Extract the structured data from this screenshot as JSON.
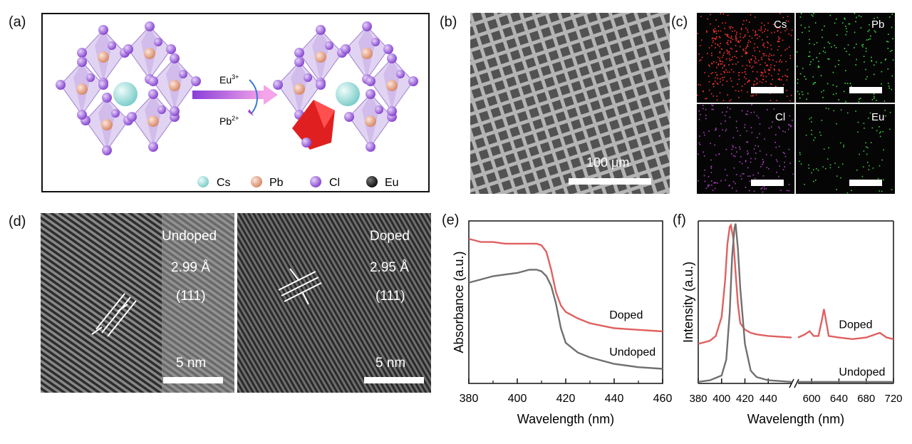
{
  "panels": {
    "a": {
      "label": "(a)",
      "ion_in": "Eu",
      "ion_in_sup": "3+",
      "ion_out": "Pb",
      "ion_out_sup": "2+",
      "legend": [
        "Cs",
        "Pb",
        "Cl",
        "Eu"
      ],
      "legend_colors": {
        "Cs": "#bfe8e6",
        "Pb": "#f0b898",
        "Cl": "#a872e0",
        "Eu": "#222222"
      }
    },
    "b": {
      "label": "(b)",
      "scale": "100 μm"
    },
    "c": {
      "label": "(c)",
      "maps": [
        {
          "element": "Cs",
          "color": "#ff3030"
        },
        {
          "element": "Pb",
          "color": "#3fdc3f"
        },
        {
          "element": "Cl",
          "color": "#b040c8"
        },
        {
          "element": "Eu",
          "color": "#40c840"
        }
      ]
    },
    "d": {
      "label": "(d)",
      "undoped": {
        "title": "Undoped",
        "spacing": "2.99 Å",
        "plane": "(111)",
        "scale": "5 nm"
      },
      "doped": {
        "title": "Doped",
        "spacing": "2.95 Å",
        "plane": "(111)",
        "scale": "5 nm"
      }
    },
    "e": {
      "label": "(e)"
    },
    "f": {
      "label": "(f)"
    }
  },
  "chart_data": [
    {
      "type": "line",
      "panel": "e",
      "xlabel": "Wavelength (nm)",
      "ylabel": "Absorbance (a.u.)",
      "xlim": [
        380,
        460
      ],
      "xticks": [
        380,
        400,
        420,
        440,
        460
      ],
      "ylim": [
        0,
        1
      ],
      "series": [
        {
          "name": "Doped",
          "color": "#e06060",
          "x": [
            380,
            385,
            390,
            395,
            400,
            405,
            408,
            410,
            412,
            414,
            416,
            418,
            420,
            425,
            430,
            440,
            450,
            460
          ],
          "y": [
            0.89,
            0.87,
            0.87,
            0.86,
            0.86,
            0.86,
            0.86,
            0.85,
            0.81,
            0.7,
            0.56,
            0.48,
            0.44,
            0.4,
            0.37,
            0.34,
            0.33,
            0.32
          ]
        },
        {
          "name": "Undoped",
          "color": "#707070",
          "x": [
            380,
            385,
            390,
            395,
            400,
            405,
            408,
            410,
            412,
            414,
            416,
            418,
            420,
            425,
            430,
            440,
            450,
            460
          ],
          "y": [
            0.62,
            0.64,
            0.66,
            0.67,
            0.68,
            0.7,
            0.7,
            0.69,
            0.66,
            0.6,
            0.49,
            0.34,
            0.25,
            0.19,
            0.16,
            0.12,
            0.1,
            0.09
          ]
        }
      ]
    },
    {
      "type": "line",
      "panel": "f",
      "xlabel": "Wavelength (nm)",
      "ylabel": "Intensity (a.u.)",
      "xticks": [
        380,
        400,
        420,
        440,
        600,
        640,
        680,
        720
      ],
      "ylim": [
        0,
        1
      ],
      "series": [
        {
          "name": "Doped",
          "color": "#e06060",
          "x": [
            380,
            390,
            395,
            400,
            403,
            405,
            407,
            408,
            410,
            412,
            414,
            416,
            420,
            425,
            430,
            440,
            460,
            580,
            590,
            597,
            603,
            610,
            615,
            618,
            621,
            625,
            640,
            660,
            680,
            700,
            710,
            720
          ],
          "y": [
            0.25,
            0.27,
            0.3,
            0.42,
            0.65,
            0.88,
            0.99,
            1.0,
            0.92,
            0.7,
            0.5,
            0.38,
            0.34,
            0.32,
            0.31,
            0.3,
            0.29,
            0.29,
            0.31,
            0.33,
            0.3,
            0.3,
            0.4,
            0.47,
            0.4,
            0.3,
            0.29,
            0.28,
            0.29,
            0.32,
            0.29,
            0.28
          ]
        },
        {
          "name": "Undoped",
          "color": "#707070",
          "x": [
            380,
            390,
            400,
            404,
            407,
            409,
            411,
            412,
            414,
            416,
            420,
            425,
            430,
            440,
            460,
            580,
            600,
            640,
            680,
            720
          ],
          "y": [
            0.01,
            0.02,
            0.05,
            0.15,
            0.45,
            0.8,
            0.98,
            1.01,
            0.85,
            0.6,
            0.25,
            0.08,
            0.04,
            0.02,
            0.01,
            0.01,
            0.01,
            0.01,
            0.01,
            0.01
          ]
        }
      ]
    }
  ]
}
